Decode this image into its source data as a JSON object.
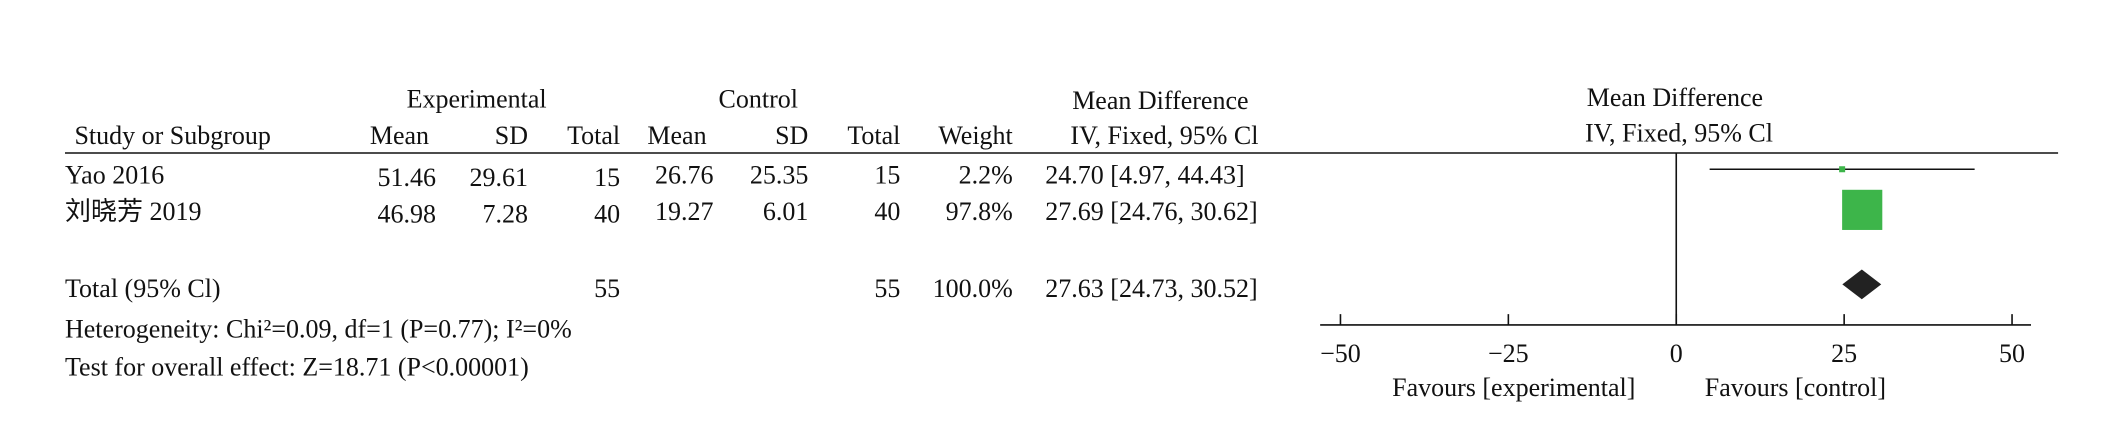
{
  "chart_data": {
    "type": "forest",
    "columns": {
      "study": "Study or Subgroup",
      "experimental": "Experimental",
      "control": "Control",
      "mean": "Mean",
      "sd": "SD",
      "total": "Total",
      "weight": "Weight",
      "effect": "Mean Difference",
      "method": "IV, Fixed, 95% Cl"
    },
    "studies": [
      {
        "name": "Yao 2016",
        "exp_mean": 51.46,
        "exp_sd": 29.61,
        "exp_total": 15,
        "ctrl_mean": 26.76,
        "ctrl_sd": 25.35,
        "ctrl_total": 15,
        "weight": 2.2,
        "weight_label": "2.2%",
        "md": 24.7,
        "ci": [
          4.97,
          44.43
        ],
        "ci_label": "24.70 [4.97, 44.43]"
      },
      {
        "name": "刘晓芳 2019",
        "exp_mean": 46.98,
        "exp_sd": 7.28,
        "exp_total": 40,
        "ctrl_mean": 19.27,
        "ctrl_sd": 6.01,
        "ctrl_total": 40,
        "weight": 97.8,
        "weight_label": "97.8%",
        "md": 27.69,
        "ci": [
          24.76,
          30.62
        ],
        "ci_label": "27.69 [24.76, 30.62]"
      }
    ],
    "total": {
      "name": "Total (95% Cl)",
      "exp_total": 55,
      "ctrl_total": 55,
      "weight": 100.0,
      "weight_label": "100.0%",
      "md": 27.63,
      "ci": [
        24.73,
        30.52
      ],
      "ci_label": "27.63 [24.73, 30.52]"
    },
    "heterogeneity": "Heterogeneity: Chi²=0.09, df=1 (P=0.77); I²=0%",
    "overall_effect": "Test for overall effect: Z=18.71 (P<0.00001)",
    "xlim": [
      -50,
      50
    ],
    "xticks": [
      {
        "value": -50,
        "label": "−50"
      },
      {
        "value": -25,
        "label": "−25"
      },
      0,
      25,
      50
    ],
    "favours": [
      "Favours [experimental]",
      "Favours [control]"
    ],
    "study_color": "#3db54a",
    "total_color": "#222222"
  }
}
